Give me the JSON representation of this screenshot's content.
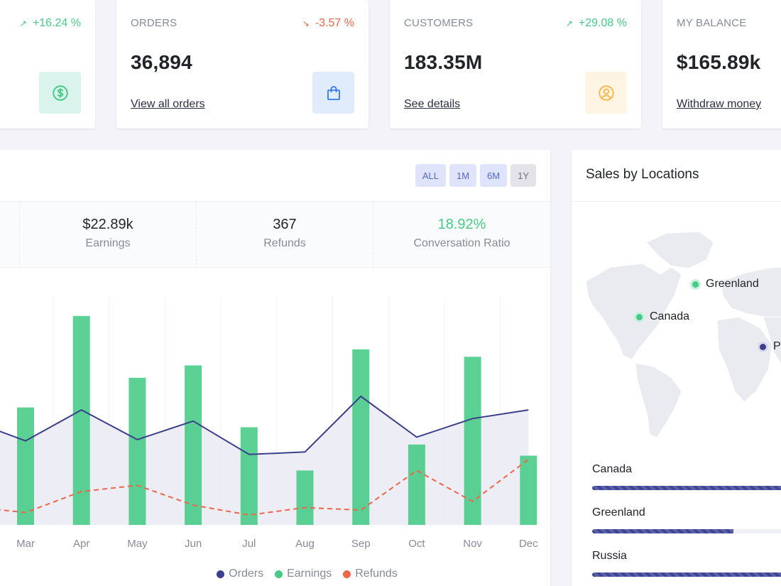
{
  "cards": [
    {
      "label": "",
      "change": "+16.24 %",
      "direction": "up",
      "value": "",
      "link": "",
      "icon": "dollar-icon",
      "icon_bg": "#daf4ed",
      "icon_color": "#45cb85"
    },
    {
      "label": "ORDERS",
      "change": "-3.57 %",
      "direction": "down",
      "value": "36,894",
      "link": "View all orders",
      "icon": "shopping-bag-icon",
      "icon_bg": "#e0ecfb",
      "icon_color": "#3577f1"
    },
    {
      "label": "CUSTOMERS",
      "change": "+29.08 %",
      "direction": "up",
      "value": "183.35M",
      "link": "See details",
      "icon": "user-circle-icon",
      "icon_bg": "#fef4e4",
      "icon_color": "#f7b84b"
    },
    {
      "label": "MY BALANCE",
      "change": "",
      "direction": "up",
      "value": "$165.89k",
      "link": "Withdraw money",
      "icon": "",
      "icon_bg": "",
      "icon_color": ""
    }
  ],
  "revenue": {
    "filters": [
      "ALL",
      "1M",
      "6M",
      "1Y"
    ],
    "active_filter": "1Y",
    "summary": [
      {
        "value": "$22.89k",
        "label": "Earnings"
      },
      {
        "value": "367",
        "label": "Refunds"
      },
      {
        "value": "18.92%",
        "label": "Conversation Ratio"
      }
    ],
    "legend": [
      "Orders",
      "Earnings",
      "Refunds"
    ]
  },
  "chart_data": {
    "type": "bar",
    "categories": [
      "Mar",
      "Apr",
      "May",
      "Jun",
      "Jul",
      "Aug",
      "Sep",
      "Oct",
      "Nov",
      "Dec"
    ],
    "series": [
      {
        "name": "Orders",
        "type": "area",
        "color": "#3b3f8c",
        "values": [
          68,
          93,
          69,
          84,
          57,
          59,
          104,
          71,
          86,
          93
        ]
      },
      {
        "name": "Earnings",
        "type": "bar",
        "color": "#45cb85",
        "values": [
          95,
          169,
          119,
          129,
          79,
          44,
          142,
          65,
          136,
          56
        ]
      },
      {
        "name": "Refunds",
        "type": "line-dashed",
        "color": "#f06548",
        "values": [
          10,
          27,
          32,
          16,
          8,
          14,
          12,
          44,
          19,
          53
        ]
      }
    ],
    "leading": {
      "Orders": 82,
      "Refunds": 14
    },
    "ylim": [
      0,
      185
    ]
  },
  "locations": {
    "title": "Sales by Locations",
    "map_markers": [
      {
        "name": "Greenland",
        "color": "green"
      },
      {
        "name": "Canada",
        "color": "green"
      },
      {
        "name": "P",
        "color": "purple"
      }
    ],
    "items": [
      {
        "name": "Canada",
        "percent": 100
      },
      {
        "name": "Greenland",
        "percent": 71
      },
      {
        "name": "Russia",
        "percent": 100
      }
    ]
  }
}
